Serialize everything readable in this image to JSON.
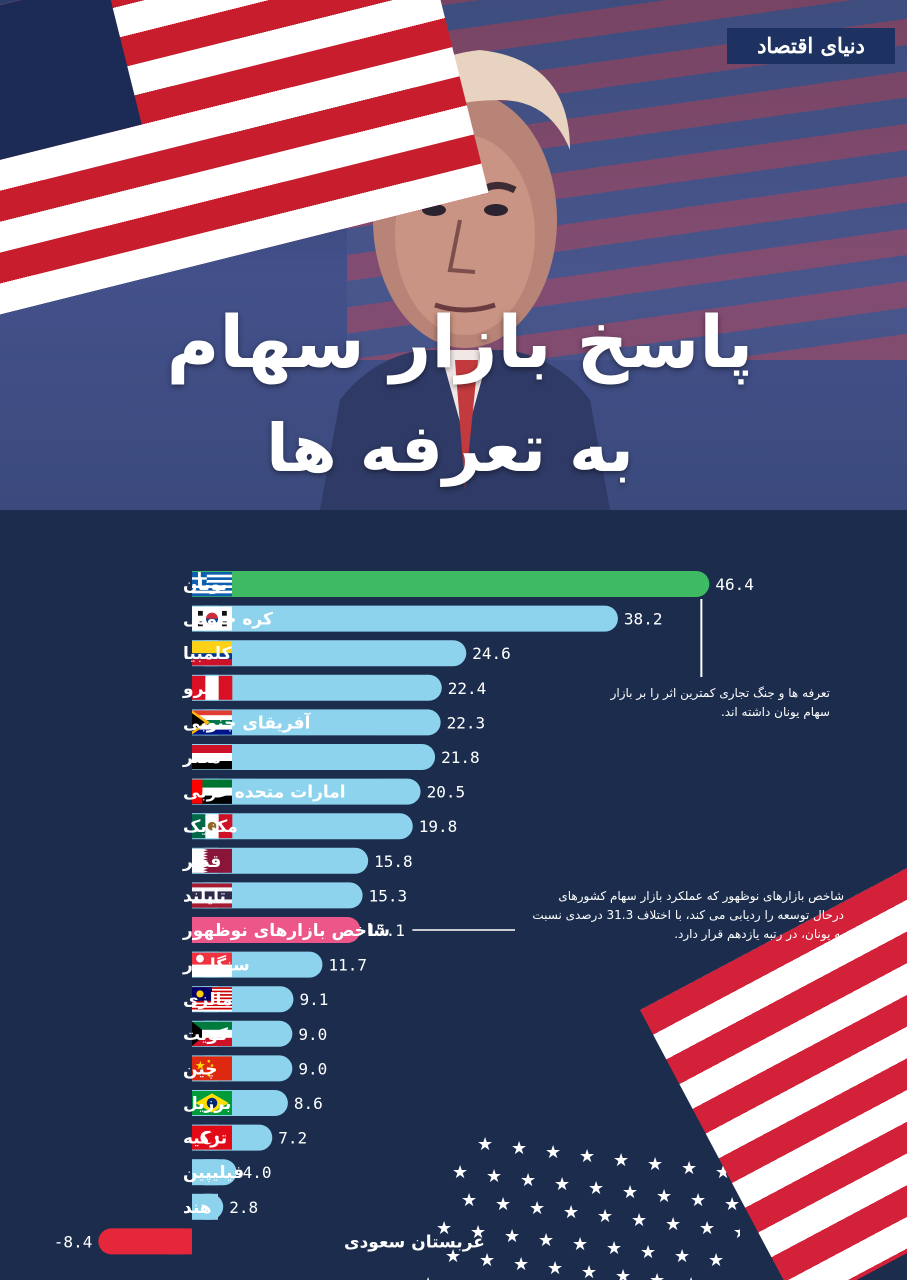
{
  "brand": {
    "logo_text": "دنیای اقتصاد"
  },
  "title": {
    "line1": "پاسخ بازار سهام",
    "line2": "به تعرفه ها"
  },
  "colors": {
    "background": "#1b2c4c",
    "bar_default": "#8dd3ee",
    "bar_greece": "#3dba62",
    "bar_emerging_index": "#ec5688",
    "bar_negative": "#e5263b"
  },
  "annotations": [
    {
      "text": "تعرفه ها و جنگ تجاری کمترین اثر را بر بازار سهام یونان داشته اند."
    },
    {
      "text": "شاخص بازارهای نوظهور که عملکرد بازار سهام کشورهای درحال توسعه را ردیابی می کند، با اختلاف 31.3 درصدی نسبت به  یونان، در رتبه یازدهم قرار دارد."
    }
  ],
  "chart_data": {
    "type": "bar",
    "orientation": "horizontal",
    "title": "",
    "xlabel": "",
    "ylabel": "",
    "grid": false,
    "categories": [
      "یونان",
      "کره جنوبی",
      "کلمبیا",
      "پرو",
      "آفریقای جنوبی",
      "مصر",
      "امارات متحده عربی",
      "مکزیک",
      "قطر",
      "تایلند",
      "شاخص بازارهای نوظهور",
      "سنگاپور",
      "مالزی",
      "کویت",
      "چین",
      "برزیل",
      "ترکیه",
      "فیلیپین",
      "هند",
      "عربستان سعودی"
    ],
    "values": [
      46.4,
      38.2,
      24.6,
      22.4,
      22.3,
      21.8,
      20.5,
      19.8,
      15.8,
      15.3,
      15.1,
      11.7,
      9.1,
      9.0,
      9.0,
      8.6,
      7.2,
      4.0,
      2.8,
      -8.4
    ],
    "value_labels": [
      "46.4",
      "38.2",
      "24.6",
      "22.4",
      "22.3",
      "21.8",
      "20.5",
      "19.8",
      "15.8",
      "15.3",
      "15.1",
      "11.7",
      "9.1",
      "9.0",
      "9.0",
      "8.6",
      "7.2",
      "4.0",
      "2.8",
      "-8.4"
    ],
    "flags": [
      "greece",
      "south-korea",
      "colombia",
      "peru",
      "south-africa",
      "egypt",
      "uae",
      "mexico",
      "qatar",
      "thailand",
      "",
      "singapore",
      "malaysia",
      "kuwait",
      "china",
      "brazil",
      "turkey",
      "",
      "",
      ""
    ],
    "highlight": {
      "0": "bar_greece",
      "10": "bar_emerging_index",
      "19": "bar_negative"
    }
  }
}
